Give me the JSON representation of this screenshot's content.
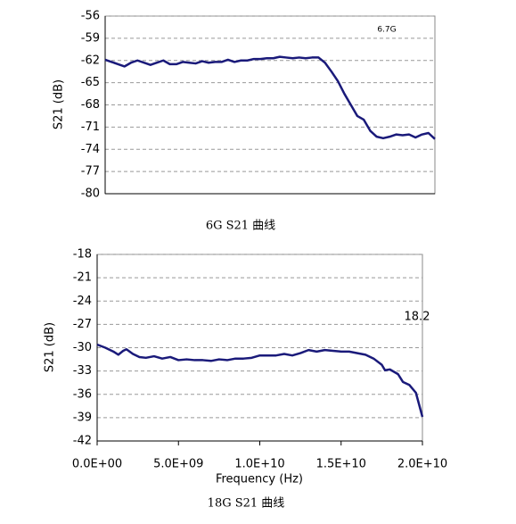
{
  "chart_data": [
    {
      "type": "line",
      "ylabel": "S21 (dB)",
      "caption": "6G S21 曲线",
      "annotation": "6.7G",
      "ylim": [
        -80,
        -56
      ],
      "yticks": [
        -80,
        -77,
        -74,
        -71,
        -68,
        -65,
        -62,
        -59,
        -56
      ],
      "grid": true,
      "series": [
        {
          "color": "#1a1a7a",
          "values": [
            -61.9,
            -62.2,
            -62.5,
            -62.8,
            -62.3,
            -62.0,
            -62.3,
            -62.6,
            -62.3,
            -62.0,
            -62.5,
            -62.5,
            -62.2,
            -62.3,
            -62.4,
            -62.1,
            -62.3,
            -62.2,
            -62.2,
            -61.9,
            -62.2,
            -62.0,
            -62.0,
            -61.8,
            -61.8,
            -61.7,
            -61.7,
            -61.5,
            -61.6,
            -61.7,
            -61.6,
            -61.7,
            -61.6,
            -61.6,
            -62.3,
            -63.5,
            -64.8,
            -66.5,
            -68.0,
            -69.5,
            -70.0,
            -71.5,
            -72.3,
            -72.5,
            -72.3,
            -72.0,
            -72.1,
            -72.0,
            -72.4,
            -72.0,
            -71.8,
            -72.6
          ]
        }
      ]
    },
    {
      "type": "line",
      "ylabel": "S21 (dB)",
      "xlabel": "Frequency (Hz)",
      "caption": "18G S21 曲线",
      "annotation": "18.2",
      "xlim": [
        0,
        20000000000
      ],
      "xticks": [
        {
          "value": 0,
          "label": "0.0E+00"
        },
        {
          "value": 5000000000,
          "label": "5.0E+09"
        },
        {
          "value": 10000000000,
          "label": "1.0E+10"
        },
        {
          "value": 15000000000,
          "label": "1.5E+10"
        },
        {
          "value": 20000000000,
          "label": "2.0E+10"
        }
      ],
      "ylim": [
        -42,
        -18
      ],
      "yticks": [
        -42,
        -39,
        -36,
        -33,
        -30,
        -27,
        -24,
        -21,
        -18
      ],
      "grid": true,
      "series": [
        {
          "color": "#1a1a7a",
          "x": [
            0,
            500000000,
            1000000000,
            1300000000,
            1600000000,
            1800000000,
            2200000000,
            2600000000,
            3000000000,
            3500000000,
            4000000000,
            4500000000,
            5000000000,
            5500000000,
            6000000000,
            6500000000,
            7000000000,
            7500000000,
            8000000000,
            8500000000,
            9000000000,
            9500000000,
            10000000000,
            10500000000,
            11000000000,
            11500000000,
            12000000000,
            12500000000,
            13000000000,
            13500000000,
            14000000000,
            14500000000,
            15000000000,
            15500000000,
            16000000000,
            16500000000,
            17000000000,
            17500000000,
            17700000000,
            18000000000,
            18500000000,
            18800000000,
            19200000000,
            19600000000,
            20000000000
          ],
          "values": [
            -29.6,
            -30.0,
            -30.5,
            -30.9,
            -30.4,
            -30.2,
            -30.8,
            -31.2,
            -31.3,
            -31.1,
            -31.4,
            -31.2,
            -31.6,
            -31.5,
            -31.6,
            -31.6,
            -31.7,
            -31.5,
            -31.6,
            -31.4,
            -31.4,
            -31.3,
            -31.0,
            -31.0,
            -31.0,
            -30.8,
            -31.0,
            -30.7,
            -30.3,
            -30.5,
            -30.3,
            -30.4,
            -30.5,
            -30.5,
            -30.7,
            -30.9,
            -31.4,
            -32.2,
            -32.9,
            -32.8,
            -33.4,
            -34.4,
            -34.8,
            -35.8,
            -38.9
          ]
        }
      ]
    }
  ]
}
